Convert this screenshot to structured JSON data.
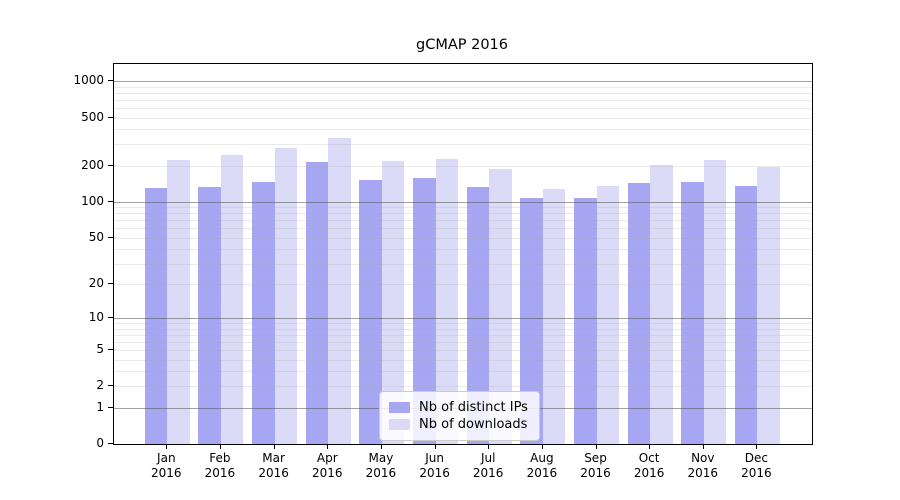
{
  "title": "gCMAP 2016",
  "chart_data": {
    "type": "bar",
    "title": "gCMAP 2016",
    "y_scale": "log1p",
    "ylim": [
      0,
      1400
    ],
    "y_ticks": [
      1000,
      500,
      200,
      100,
      50,
      20,
      10,
      5,
      2,
      1,
      0
    ],
    "grid": "horizontal minor lines at 1-9, 10-90, 100-900; darker lines at 1, 10, 100, 1000",
    "legend_position": "bottom-center",
    "categories": [
      "Jan",
      "Feb",
      "Mar",
      "Apr",
      "May",
      "Jun",
      "Jul",
      "Aug",
      "Sep",
      "Oct",
      "Nov",
      "Dec"
    ],
    "year_label": "2016",
    "series": [
      {
        "name": "Nb of distinct IPs",
        "color": "#a6a6f2",
        "values": [
          130,
          133,
          145,
          215,
          151,
          158,
          133,
          107,
          108,
          144,
          145,
          135
        ]
      },
      {
        "name": "Nb of downloads",
        "color": "#dbdbf8",
        "values": [
          223,
          243,
          281,
          342,
          219,
          227,
          188,
          127,
          136,
          201,
          221,
          195
        ]
      }
    ]
  },
  "colors": {
    "background": "#ffffff",
    "axis": "#000000",
    "grid_minor": "rgba(170,170,170,0.25)",
    "grid_decade": "rgba(85,85,85,0.55)",
    "legend_border": "#cccccc"
  }
}
